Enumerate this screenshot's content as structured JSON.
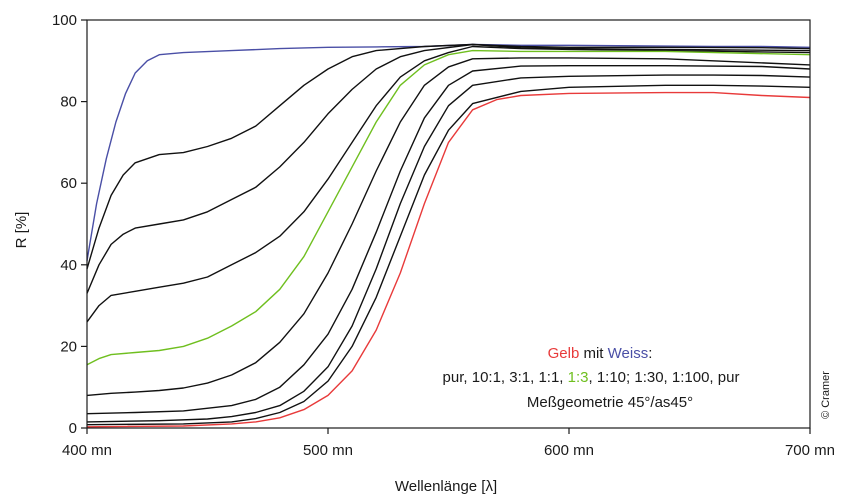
{
  "chart_data": {
    "type": "line",
    "xlabel": "Wellenlänge [λ]",
    "ylabel": "R [%]",
    "xlim": [
      400,
      700
    ],
    "ylim": [
      0,
      100
    ],
    "x_ticks": [
      {
        "value": 400,
        "label": "400 mn"
      },
      {
        "value": 500,
        "label": "500 mn"
      },
      {
        "value": 600,
        "label": "600 mn"
      },
      {
        "value": 700,
        "label": "700 mn"
      }
    ],
    "y_ticks": [
      {
        "value": 0,
        "label": "0"
      },
      {
        "value": 20,
        "label": "20"
      },
      {
        "value": 40,
        "label": "40"
      },
      {
        "value": 60,
        "label": "60"
      },
      {
        "value": 80,
        "label": "80"
      },
      {
        "value": 100,
        "label": "100"
      }
    ],
    "grid": false,
    "colors": {
      "gelb": "#e83a3a",
      "weiss": "#4a4fa6",
      "green": "#6fbf1f",
      "black": "#111111"
    },
    "series": [
      {
        "color": "#4a4fa6",
        "points": [
          [
            400,
            41
          ],
          [
            404,
            55
          ],
          [
            408,
            66
          ],
          [
            412,
            75
          ],
          [
            416,
            82
          ],
          [
            420,
            87
          ],
          [
            425,
            90
          ],
          [
            430,
            91.5
          ],
          [
            440,
            92
          ],
          [
            460,
            92.5
          ],
          [
            480,
            93
          ],
          [
            500,
            93.3
          ],
          [
            520,
            93.4
          ],
          [
            540,
            93.5
          ],
          [
            560,
            94
          ],
          [
            580,
            93.8
          ],
          [
            600,
            93.8
          ],
          [
            620,
            93.7
          ],
          [
            640,
            93.6
          ],
          [
            660,
            93.5
          ],
          [
            680,
            93.5
          ],
          [
            700,
            93.3
          ]
        ]
      },
      {
        "color": "#111111",
        "points": [
          [
            400,
            39
          ],
          [
            405,
            49
          ],
          [
            410,
            57
          ],
          [
            415,
            62
          ],
          [
            420,
            65
          ],
          [
            430,
            67
          ],
          [
            440,
            67.5
          ],
          [
            450,
            69
          ],
          [
            460,
            71
          ],
          [
            470,
            74
          ],
          [
            480,
            79
          ],
          [
            490,
            84
          ],
          [
            500,
            88
          ],
          [
            510,
            91
          ],
          [
            520,
            92.5
          ],
          [
            540,
            93.5
          ],
          [
            560,
            94
          ],
          [
            580,
            93.5
          ],
          [
            600,
            93.3
          ],
          [
            640,
            93.3
          ],
          [
            680,
            93.2
          ],
          [
            700,
            93
          ]
        ]
      },
      {
        "color": "#111111",
        "points": [
          [
            400,
            33
          ],
          [
            405,
            40
          ],
          [
            410,
            45
          ],
          [
            415,
            47.5
          ],
          [
            420,
            49
          ],
          [
            430,
            50
          ],
          [
            440,
            51
          ],
          [
            450,
            53
          ],
          [
            460,
            56
          ],
          [
            470,
            59
          ],
          [
            480,
            64
          ],
          [
            490,
            70
          ],
          [
            500,
            77
          ],
          [
            510,
            83
          ],
          [
            520,
            88
          ],
          [
            530,
            91
          ],
          [
            540,
            92.5
          ],
          [
            560,
            94
          ],
          [
            580,
            93.2
          ],
          [
            600,
            93
          ],
          [
            640,
            92.8
          ],
          [
            700,
            92.5
          ]
        ]
      },
      {
        "color": "#111111",
        "points": [
          [
            400,
            26
          ],
          [
            405,
            30
          ],
          [
            410,
            32.5
          ],
          [
            420,
            33.5
          ],
          [
            430,
            34.5
          ],
          [
            440,
            35.5
          ],
          [
            450,
            37
          ],
          [
            460,
            40
          ],
          [
            470,
            43
          ],
          [
            480,
            47
          ],
          [
            490,
            53
          ],
          [
            500,
            61
          ],
          [
            510,
            70
          ],
          [
            520,
            79
          ],
          [
            530,
            86
          ],
          [
            540,
            90
          ],
          [
            550,
            92
          ],
          [
            560,
            93.5
          ],
          [
            580,
            93
          ],
          [
            600,
            92.8
          ],
          [
            640,
            92.5
          ],
          [
            700,
            92
          ]
        ]
      },
      {
        "color": "#6fbf1f",
        "points": [
          [
            400,
            15.5
          ],
          [
            405,
            17
          ],
          [
            410,
            18
          ],
          [
            420,
            18.5
          ],
          [
            430,
            19
          ],
          [
            440,
            20
          ],
          [
            450,
            22
          ],
          [
            460,
            25
          ],
          [
            470,
            28.5
          ],
          [
            480,
            34
          ],
          [
            490,
            42
          ],
          [
            500,
            53
          ],
          [
            510,
            64
          ],
          [
            520,
            75
          ],
          [
            530,
            84
          ],
          [
            540,
            89
          ],
          [
            550,
            91.5
          ],
          [
            560,
            92.5
          ],
          [
            580,
            92.3
          ],
          [
            600,
            92.3
          ],
          [
            640,
            92.3
          ],
          [
            700,
            91.5
          ]
        ]
      },
      {
        "color": "#111111",
        "points": [
          [
            400,
            8
          ],
          [
            410,
            8.5
          ],
          [
            420,
            8.8
          ],
          [
            430,
            9.2
          ],
          [
            440,
            9.8
          ],
          [
            450,
            11
          ],
          [
            460,
            13
          ],
          [
            470,
            16
          ],
          [
            480,
            21
          ],
          [
            490,
            28
          ],
          [
            500,
            38
          ],
          [
            510,
            50
          ],
          [
            520,
            63
          ],
          [
            530,
            75
          ],
          [
            540,
            84
          ],
          [
            550,
            88.5
          ],
          [
            560,
            90.5
          ],
          [
            580,
            90.7
          ],
          [
            600,
            90.7
          ],
          [
            640,
            90.5
          ],
          [
            700,
            89
          ]
        ]
      },
      {
        "color": "#111111",
        "points": [
          [
            400,
            3.5
          ],
          [
            420,
            3.8
          ],
          [
            440,
            4.2
          ],
          [
            460,
            5.5
          ],
          [
            470,
            7
          ],
          [
            480,
            10
          ],
          [
            490,
            15.5
          ],
          [
            500,
            23
          ],
          [
            510,
            34
          ],
          [
            520,
            48
          ],
          [
            530,
            63
          ],
          [
            540,
            76
          ],
          [
            550,
            84
          ],
          [
            560,
            87.5
          ],
          [
            580,
            88.7
          ],
          [
            600,
            88.8
          ],
          [
            640,
            88.8
          ],
          [
            680,
            88.6
          ],
          [
            700,
            88
          ]
        ]
      },
      {
        "color": "#111111",
        "points": [
          [
            400,
            1.5
          ],
          [
            430,
            1.8
          ],
          [
            450,
            2.2
          ],
          [
            460,
            2.8
          ],
          [
            470,
            3.8
          ],
          [
            480,
            5.5
          ],
          [
            490,
            9
          ],
          [
            500,
            15
          ],
          [
            510,
            25
          ],
          [
            520,
            39
          ],
          [
            530,
            55
          ],
          [
            540,
            69
          ],
          [
            550,
            79
          ],
          [
            560,
            84
          ],
          [
            580,
            85.8
          ],
          [
            600,
            86.2
          ],
          [
            640,
            86.5
          ],
          [
            660,
            86.5
          ],
          [
            680,
            86.4
          ],
          [
            700,
            86
          ]
        ]
      },
      {
        "color": "#111111",
        "points": [
          [
            400,
            0.8
          ],
          [
            440,
            1
          ],
          [
            460,
            1.5
          ],
          [
            470,
            2.3
          ],
          [
            480,
            3.8
          ],
          [
            490,
            6.5
          ],
          [
            500,
            11.5
          ],
          [
            510,
            20
          ],
          [
            520,
            32
          ],
          [
            530,
            47
          ],
          [
            540,
            62
          ],
          [
            550,
            73
          ],
          [
            560,
            79.5
          ],
          [
            580,
            82.5
          ],
          [
            600,
            83.5
          ],
          [
            640,
            84
          ],
          [
            660,
            84
          ],
          [
            680,
            83.8
          ],
          [
            700,
            83.5
          ]
        ]
      },
      {
        "color": "#e83a3a",
        "points": [
          [
            400,
            0.3
          ],
          [
            440,
            0.5
          ],
          [
            460,
            1
          ],
          [
            470,
            1.5
          ],
          [
            480,
            2.5
          ],
          [
            490,
            4.5
          ],
          [
            500,
            8
          ],
          [
            510,
            14
          ],
          [
            520,
            24
          ],
          [
            530,
            38
          ],
          [
            540,
            55
          ],
          [
            550,
            70
          ],
          [
            560,
            78
          ],
          [
            570,
            80.5
          ],
          [
            580,
            81.5
          ],
          [
            600,
            82
          ],
          [
            640,
            82.2
          ],
          [
            660,
            82.2
          ],
          [
            680,
            81.5
          ],
          [
            700,
            81
          ]
        ]
      }
    ],
    "annotations": {
      "line1": {
        "gelb": "Gelb",
        "mit": " mit ",
        "weiss": "Weiss",
        "colon": ":"
      },
      "line2": {
        "part1": "pur, 10:1, 3:1, 1:1, ",
        "green": "1:3",
        "part2": ", 1:10; 1:30, 1:100, pur"
      },
      "line3": "Meßgeometrie 45°/as45°"
    },
    "credit": "© Cramer"
  }
}
